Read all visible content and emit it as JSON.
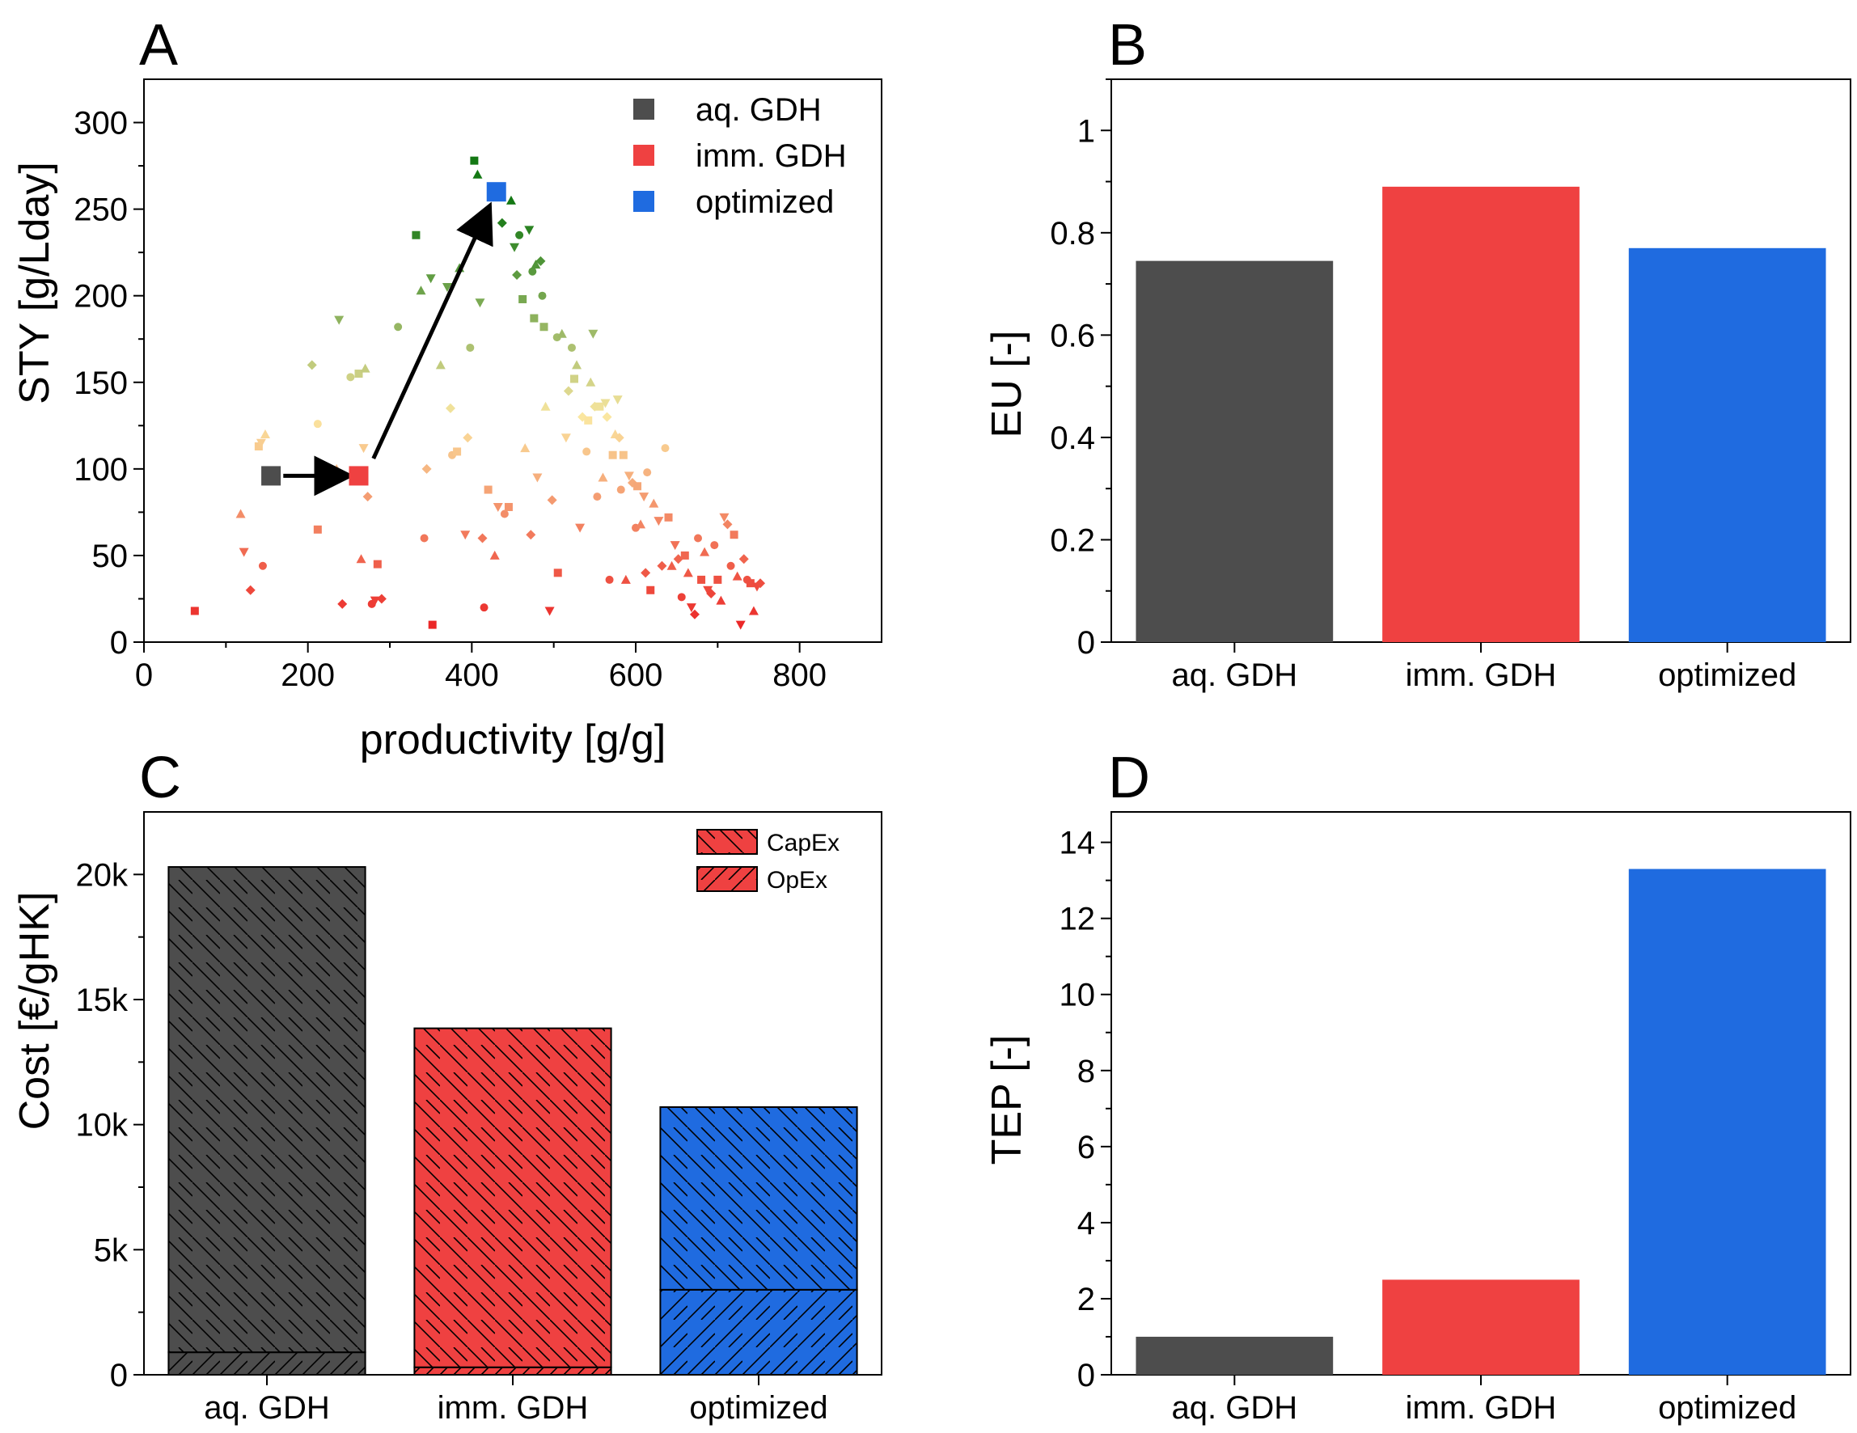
{
  "colors": {
    "aq_gdh": "#4d4d4d",
    "imm_gdh": "#ef4141",
    "optimized": "#1f6be0",
    "arrow": "#000000"
  },
  "chart_data": [
    {
      "panel": "A",
      "type": "scatter",
      "xlabel": "productivity [g/g]",
      "ylabel": "STY [g/Lday]",
      "xlim": [
        0,
        900
      ],
      "ylim": [
        0,
        325
      ],
      "xticks": [
        "0",
        "200",
        "400",
        "600",
        "800"
      ],
      "yticks": [
        "0",
        "50",
        "100",
        "150",
        "200",
        "250",
        "300"
      ],
      "legend": [
        "aq. GDH",
        "imm. GDH",
        "optimized"
      ],
      "highlighted_points": [
        {
          "name": "aq. GDH",
          "x": 155,
          "y": 96
        },
        {
          "name": "imm. GDH",
          "x": 262,
          "y": 96
        },
        {
          "name": "optimized",
          "x": 430,
          "y": 260
        }
      ],
      "arrows": [
        {
          "from": [
            170,
            96
          ],
          "to": [
            247,
            96
          ]
        },
        {
          "from": [
            280,
            106
          ],
          "to": [
            420,
            250
          ]
        }
      ],
      "background_points_note": "screening results shaded red (low) to green (high STY)",
      "background_points": [
        [
          62,
          18
        ],
        [
          118,
          74
        ],
        [
          122,
          52
        ],
        [
          130,
          30
        ],
        [
          145,
          44
        ],
        [
          140,
          113
        ],
        [
          148,
          120
        ],
        [
          143,
          115
        ],
        [
          205,
          160
        ],
        [
          212,
          126
        ],
        [
          212,
          65
        ],
        [
          235,
          100
        ],
        [
          238,
          186
        ],
        [
          242,
          22
        ],
        [
          252,
          153
        ],
        [
          262,
          155
        ],
        [
          270,
          158
        ],
        [
          268,
          112
        ],
        [
          273,
          84
        ],
        [
          278,
          22
        ],
        [
          285,
          45
        ],
        [
          265,
          48
        ],
        [
          282,
          24
        ],
        [
          290,
          25
        ],
        [
          310,
          182
        ],
        [
          332,
          235
        ],
        [
          338,
          203
        ],
        [
          350,
          210
        ],
        [
          345,
          100
        ],
        [
          342,
          60
        ],
        [
          352,
          10
        ],
        [
          362,
          160
        ],
        [
          370,
          205
        ],
        [
          374,
          135
        ],
        [
          376,
          108
        ],
        [
          382,
          110
        ],
        [
          385,
          216
        ],
        [
          392,
          62
        ],
        [
          395,
          118
        ],
        [
          398,
          170
        ],
        [
          403,
          278
        ],
        [
          407,
          270
        ],
        [
          410,
          196
        ],
        [
          413,
          60
        ],
        [
          415,
          20
        ],
        [
          420,
          88
        ],
        [
          428,
          50
        ],
        [
          432,
          78
        ],
        [
          437,
          242
        ],
        [
          440,
          74
        ],
        [
          445,
          78
        ],
        [
          448,
          255
        ],
        [
          452,
          228
        ],
        [
          455,
          212
        ],
        [
          458,
          235
        ],
        [
          462,
          198
        ],
        [
          465,
          112
        ],
        [
          470,
          238
        ],
        [
          472,
          62
        ],
        [
          474,
          214
        ],
        [
          476,
          187
        ],
        [
          478,
          218
        ],
        [
          480,
          95
        ],
        [
          484,
          220
        ],
        [
          486,
          200
        ],
        [
          488,
          182
        ],
        [
          490,
          136
        ],
        [
          495,
          18
        ],
        [
          498,
          82
        ],
        [
          504,
          176
        ],
        [
          505,
          40
        ],
        [
          510,
          178
        ],
        [
          515,
          118
        ],
        [
          518,
          145
        ],
        [
          522,
          170
        ],
        [
          525,
          152
        ],
        [
          528,
          160
        ],
        [
          532,
          66
        ],
        [
          535,
          130
        ],
        [
          540,
          110
        ],
        [
          542,
          128
        ],
        [
          545,
          150
        ],
        [
          548,
          178
        ],
        [
          550,
          136
        ],
        [
          553,
          84
        ],
        [
          556,
          136
        ],
        [
          560,
          95
        ],
        [
          563,
          138
        ],
        [
          565,
          130
        ],
        [
          568,
          36
        ],
        [
          572,
          108
        ],
        [
          575,
          120
        ],
        [
          578,
          140
        ],
        [
          580,
          118
        ],
        [
          582,
          88
        ],
        [
          585,
          108
        ],
        [
          588,
          36
        ],
        [
          592,
          96
        ],
        [
          596,
          92
        ],
        [
          600,
          66
        ],
        [
          602,
          90
        ],
        [
          606,
          68
        ],
        [
          610,
          84
        ],
        [
          612,
          40
        ],
        [
          614,
          98
        ],
        [
          618,
          30
        ],
        [
          622,
          80
        ],
        [
          628,
          70
        ],
        [
          632,
          44
        ],
        [
          636,
          112
        ],
        [
          640,
          72
        ],
        [
          644,
          44
        ],
        [
          648,
          56
        ],
        [
          652,
          48
        ],
        [
          656,
          26
        ],
        [
          660,
          50
        ],
        [
          664,
          40
        ],
        [
          668,
          20
        ],
        [
          672,
          16
        ],
        [
          676,
          60
        ],
        [
          680,
          36
        ],
        [
          684,
          52
        ],
        [
          688,
          30
        ],
        [
          692,
          28
        ],
        [
          696,
          56
        ],
        [
          700,
          36
        ],
        [
          704,
          24
        ],
        [
          708,
          72
        ],
        [
          712,
          68
        ],
        [
          716,
          44
        ],
        [
          720,
          62
        ],
        [
          724,
          38
        ],
        [
          728,
          10
        ],
        [
          732,
          48
        ],
        [
          736,
          36
        ],
        [
          740,
          34
        ],
        [
          744,
          18
        ],
        [
          748,
          32
        ],
        [
          752,
          34
        ]
      ]
    },
    {
      "panel": "B",
      "type": "bar",
      "categories": [
        "aq. GDH",
        "imm. GDH",
        "optimized"
      ],
      "values": [
        0.745,
        0.89,
        0.77
      ],
      "ylabel": "EU [-]",
      "ylim": [
        0,
        1.1
      ],
      "yticks": [
        "0",
        "0.2",
        "0.4",
        "0.6",
        "0.8",
        "1"
      ]
    },
    {
      "panel": "C",
      "type": "bar",
      "stacked": true,
      "categories": [
        "aq. GDH",
        "imm. GDH",
        "optimized"
      ],
      "series": [
        {
          "name": "OpEx",
          "values": [
            900,
            300,
            3400
          ]
        },
        {
          "name": "CapEx",
          "values": [
            19400,
            13550,
            7300
          ]
        }
      ],
      "legend": [
        "CapEx",
        "OpEx"
      ],
      "ylabel": "Cost [€/gHK]",
      "ylim": [
        0,
        22500
      ],
      "yticks": [
        "0",
        "5k",
        "10k",
        "15k",
        "20k"
      ]
    },
    {
      "panel": "D",
      "type": "bar",
      "categories": [
        "aq. GDH",
        "imm. GDH",
        "optimized"
      ],
      "values": [
        1.0,
        2.5,
        13.3
      ],
      "ylabel": "TEP [-]",
      "ylim": [
        0,
        14.8
      ],
      "yticks": [
        "0",
        "2",
        "4",
        "6",
        "8",
        "10",
        "12",
        "14"
      ]
    }
  ],
  "panel_letters": [
    "A",
    "B",
    "C",
    "D"
  ]
}
